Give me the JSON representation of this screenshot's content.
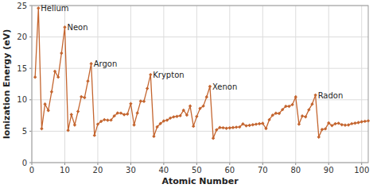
{
  "chart_data": {
    "type": "line",
    "x_label": "Atomic Number",
    "y_label": "Ionization Energy (eV)",
    "color": "#c4652f",
    "marker": "diamond",
    "grid": true,
    "xlim": [
      0,
      102
    ],
    "ylim": [
      0,
      25
    ],
    "xticks": [
      0,
      10,
      20,
      30,
      40,
      50,
      60,
      70,
      80,
      90,
      100
    ],
    "yticks": [
      0,
      5,
      10,
      15,
      20,
      25
    ],
    "x": [
      1,
      2,
      3,
      4,
      5,
      6,
      7,
      8,
      9,
      10,
      11,
      12,
      13,
      14,
      15,
      16,
      17,
      18,
      19,
      20,
      21,
      22,
      23,
      24,
      25,
      26,
      27,
      28,
      29,
      30,
      31,
      32,
      33,
      34,
      35,
      36,
      37,
      38,
      39,
      40,
      41,
      42,
      43,
      44,
      45,
      46,
      47,
      48,
      49,
      50,
      51,
      52,
      53,
      54,
      55,
      56,
      57,
      58,
      59,
      60,
      61,
      62,
      63,
      64,
      65,
      66,
      67,
      68,
      69,
      70,
      71,
      72,
      73,
      74,
      75,
      76,
      77,
      78,
      79,
      80,
      81,
      82,
      83,
      84,
      85,
      86,
      87,
      88,
      89,
      90,
      91,
      92,
      93,
      94,
      95,
      96,
      97,
      98,
      99,
      100,
      101,
      102
    ],
    "values": [
      13.6,
      24.59,
      5.39,
      9.32,
      8.3,
      11.26,
      14.53,
      13.62,
      17.42,
      21.56,
      5.14,
      7.65,
      5.99,
      8.15,
      10.49,
      10.36,
      12.97,
      15.76,
      4.34,
      6.11,
      6.56,
      6.83,
      6.75,
      6.77,
      7.43,
      7.9,
      7.88,
      7.64,
      7.73,
      9.39,
      6.0,
      7.9,
      9.79,
      9.75,
      11.81,
      14.0,
      4.18,
      5.69,
      6.22,
      6.63,
      6.76,
      7.09,
      7.28,
      7.36,
      7.46,
      8.34,
      7.58,
      8.99,
      5.79,
      7.34,
      8.61,
      9.01,
      10.45,
      12.13,
      3.89,
      5.21,
      5.58,
      5.54,
      5.47,
      5.53,
      5.58,
      5.64,
      5.67,
      6.15,
      5.86,
      5.94,
      6.02,
      6.11,
      6.18,
      6.25,
      5.43,
      6.83,
      7.55,
      7.86,
      7.83,
      8.44,
      8.97,
      8.96,
      9.23,
      10.44,
      6.11,
      7.42,
      7.29,
      8.41,
      9.32,
      10.75,
      4.07,
      5.28,
      5.38,
      6.31,
      5.89,
      6.19,
      6.27,
      6.03,
      5.97,
      5.99,
      6.2,
      6.28,
      6.37,
      6.5,
      6.58,
      6.65
    ],
    "annotations": [
      {
        "text": "Helium",
        "x": 2
      },
      {
        "text": "Neon",
        "x": 10
      },
      {
        "text": "Argon",
        "x": 18
      },
      {
        "text": "Krypton",
        "x": 36
      },
      {
        "text": "Xenon",
        "x": 54
      },
      {
        "text": "Radon",
        "x": 86
      }
    ]
  }
}
